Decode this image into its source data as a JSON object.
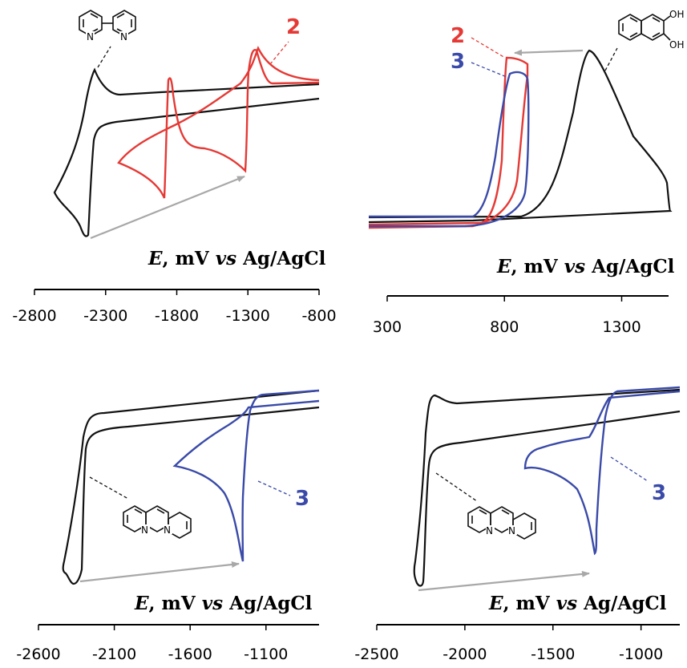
{
  "colors": {
    "ligand": "#111111",
    "compound2": "#e53935",
    "compound3": "#3a4aa8",
    "arrow": "#a8a8a8"
  },
  "chart_data": [
    {
      "type": "line",
      "panel": "top-left",
      "xlabel": {
        "e": "E",
        "mid": ", mV ",
        "vs": "vs",
        "rest": " Ag/AgCl"
      },
      "xticks": [
        -2800,
        -2300,
        -1800,
        -1300,
        -800
      ],
      "xlim": [
        -2800,
        -800
      ],
      "series": [
        {
          "name": "",
          "color_key": "ligand"
        },
        {
          "name": "2",
          "color_key": "compound2"
        }
      ],
      "peaks": {
        "ligand_reduction": -2480,
        "compound2_reductions": [
          -1880,
          -1310
        ]
      },
      "annotations": [
        {
          "text": "2",
          "color_key": "compound2"
        }
      ]
    },
    {
      "type": "line",
      "panel": "top-right",
      "xlabel": {
        "e": "E",
        "mid": ", mV ",
        "vs": "vs",
        "rest": " Ag/AgCl"
      },
      "xticks": [
        300,
        800,
        1300
      ],
      "xlim": [
        300,
        1500
      ],
      "series": [
        {
          "name": "",
          "color_key": "ligand"
        },
        {
          "name": "2",
          "color_key": "compound2"
        },
        {
          "name": "3",
          "color_key": "compound3"
        }
      ],
      "peaks": {
        "ligand_oxidation": 1150,
        "compound2_oxidation": 820,
        "compound3_oxidation": 860
      },
      "annotations": [
        {
          "text": "2",
          "color_key": "compound2"
        },
        {
          "text": "3",
          "color_key": "compound3"
        }
      ]
    },
    {
      "type": "line",
      "panel": "bottom-left",
      "xlabel": {
        "e": "E",
        "mid": ", mV ",
        "vs": "vs",
        "rest": " Ag/AgCl"
      },
      "xticks": [
        -2600,
        -2100,
        -1600,
        -1100
      ],
      "xlim": [
        -2600,
        -750
      ],
      "series": [
        {
          "name": "",
          "color_key": "ligand"
        },
        {
          "name": "3",
          "color_key": "compound3"
        }
      ],
      "peaks": {
        "ligand_reduction": -2380,
        "compound3_reduction": -1310
      },
      "annotations": [
        {
          "text": "3",
          "color_key": "compound3"
        }
      ]
    },
    {
      "type": "line",
      "panel": "bottom-right",
      "xlabel": {
        "e": "E",
        "mid": ", mV ",
        "vs": "vs",
        "rest": " Ag/AgCl"
      },
      "xticks": [
        -2500,
        -2000,
        -1500,
        -1000
      ],
      "xlim": [
        -2500,
        -780
      ],
      "series": [
        {
          "name": "",
          "color_key": "ligand"
        },
        {
          "name": "3",
          "color_key": "compound3"
        }
      ],
      "peaks": {
        "ligand_reduction": -2380,
        "compound3_reduction": -1300
      },
      "annotations": [
        {
          "text": "3",
          "color_key": "compound3"
        }
      ]
    }
  ],
  "atoms": {
    "n": "N",
    "oh": "OH"
  }
}
